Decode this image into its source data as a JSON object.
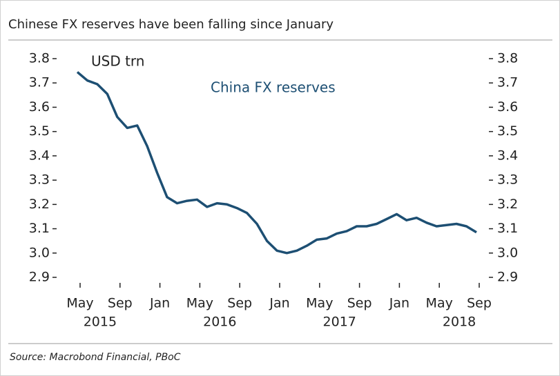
{
  "chart_data": {
    "type": "line",
    "title": "Chinese FX reserves have been falling since January",
    "unit_label": "USD trn",
    "source": "Source: Macrobond Financial, PBoC",
    "categories": [
      "May",
      null,
      null,
      null,
      "Sep",
      null,
      null,
      null,
      "Jan",
      null,
      null,
      null,
      "May",
      null,
      null,
      null,
      "Sep",
      null,
      null,
      null,
      "Jan",
      null,
      null,
      null,
      "May",
      null,
      null,
      null,
      "Sep",
      null,
      null,
      null,
      "Jan",
      null,
      null,
      null,
      "May",
      null,
      null,
      null,
      "Sep"
    ],
    "year_labels": [
      "2015",
      "2016",
      "2017",
      "2018"
    ],
    "series": [
      {
        "name": "China FX reserves",
        "color": "#1d4f73",
        "values": [
          3.745,
          3.71,
          3.695,
          3.655,
          3.56,
          3.515,
          3.525,
          3.44,
          3.33,
          3.23,
          3.205,
          3.215,
          3.22,
          3.19,
          3.205,
          3.2,
          3.185,
          3.165,
          3.12,
          3.05,
          3.01,
          3.0,
          3.01,
          3.03,
          3.055,
          3.06,
          3.08,
          3.09,
          3.11,
          3.11,
          3.12,
          3.14,
          3.16,
          3.135,
          3.145,
          3.125,
          3.11,
          3.115,
          3.12,
          3.11,
          3.085
        ]
      }
    ],
    "ylim": [
      2.9,
      3.8
    ],
    "yticks": [
      2.9,
      {
        "value": 3,
        "label": "3.0"
      },
      3.1,
      3.2,
      3.3,
      3.4,
      3.5,
      3.6,
      3.7,
      3.8
    ],
    "y2lim": [
      2.9,
      3.8
    ],
    "y2ticks": [
      2.9,
      {
        "value": 3,
        "label": "3.0"
      },
      3.1,
      3.2,
      3.3,
      3.4,
      3.5,
      3.6,
      3.7,
      3.8
    ],
    "grid": false
  }
}
